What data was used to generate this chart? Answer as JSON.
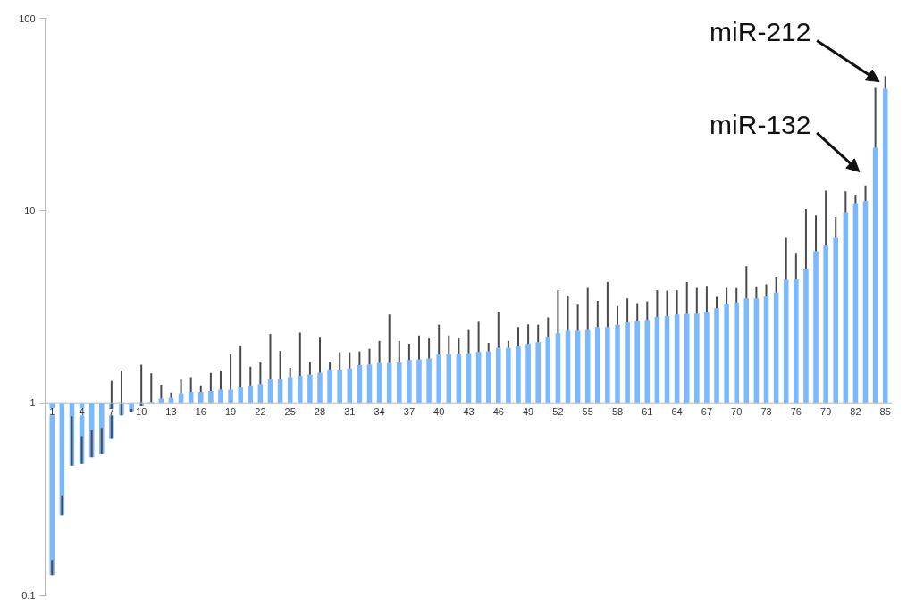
{
  "chart_data": {
    "type": "bar",
    "log": "y",
    "grid": false,
    "categories": [
      "1",
      null,
      null,
      "4",
      null,
      null,
      "7",
      null,
      null,
      "10",
      null,
      null,
      "13",
      null,
      null,
      "16",
      null,
      null,
      "19",
      null,
      null,
      "22",
      null,
      null,
      "25",
      null,
      null,
      "28",
      null,
      null,
      "31",
      null,
      null,
      "34",
      null,
      null,
      "37",
      null,
      null,
      "40",
      null,
      null,
      "43",
      null,
      null,
      "46",
      null,
      null,
      "49",
      null,
      null,
      "52",
      null,
      null,
      "55",
      null,
      null,
      "58",
      null,
      null,
      "61",
      null,
      null,
      "64",
      null,
      null,
      "67",
      null,
      null,
      "70",
      null,
      null,
      "73",
      null,
      null,
      "76",
      null,
      null,
      "79",
      null,
      null,
      "82",
      null,
      null,
      "85"
    ],
    "series": [
      {
        "color": "#7ab8ff",
        "base": [
          1,
          1,
          1,
          1,
          1,
          1,
          1,
          1,
          1,
          1,
          1,
          1,
          1,
          1,
          1,
          1,
          1,
          1,
          1,
          1,
          1,
          1,
          1,
          1,
          1,
          1,
          1,
          1,
          1,
          1,
          1,
          1,
          1,
          1,
          1,
          1,
          1,
          1,
          1,
          1,
          1,
          1,
          1,
          1,
          1,
          1,
          1,
          1,
          1,
          1,
          1,
          1,
          1,
          1,
          1,
          1,
          1,
          1,
          1,
          1,
          1,
          1,
          1,
          1,
          1,
          1,
          1,
          1,
          1,
          1,
          1,
          1,
          1,
          1,
          1,
          1,
          1,
          1,
          1,
          1,
          1,
          1,
          1,
          1,
          1
        ],
        "values": [
          -0.873,
          -0.74,
          -0.53,
          -0.52,
          -0.48,
          -0.46,
          -0.35,
          -0.14,
          -0.1,
          -0.04,
          0.01,
          0.05,
          0.06,
          0.12,
          0.14,
          0.14,
          0.15,
          0.17,
          0.17,
          0.2,
          0.23,
          0.25,
          0.32,
          0.33,
          0.36,
          0.38,
          0.4,
          0.43,
          0.49,
          0.49,
          0.51,
          0.57,
          0.58,
          0.61,
          0.61,
          0.62,
          0.67,
          0.68,
          0.7,
          0.78,
          0.79,
          0.8,
          0.81,
          0.84,
          0.85,
          0.93,
          0.93,
          0.96,
          1.03,
          1.07,
          1.19,
          1.3,
          1.37,
          1.37,
          1.39,
          1.48,
          1.48,
          1.55,
          1.62,
          1.67,
          1.7,
          1.8,
          1.83,
          1.88,
          1.9,
          1.91,
          1.96,
          2.1,
          2.27,
          2.33,
          2.49,
          2.49,
          2.58,
          2.74,
          3.36,
          3.39,
          3.98,
          5.13,
          5.64,
          6.21,
          8.71,
          9.9,
          10.2,
          20.2,
          42
        ],
        "errors": [
          [
            0.127,
            0.152
          ],
          [
            0.26,
            0.33
          ],
          [
            0.47,
            0.85
          ],
          [
            0.48,
            0.67
          ],
          [
            0.52,
            0.72
          ],
          [
            0.54,
            0.74
          ],
          [
            0.65,
            1.3
          ],
          [
            0.86,
            1.47
          ],
          [
            0.9,
            0.93
          ],
          [
            0.96,
            1.58
          ],
          [
            1.01,
            1.42
          ],
          [
            1.05,
            1.24
          ],
          [
            1.06,
            1.13
          ],
          [
            1.12,
            1.32
          ],
          [
            1.14,
            1.36
          ],
          [
            1.14,
            1.23
          ],
          [
            1.15,
            1.43
          ],
          [
            1.17,
            1.47
          ],
          [
            1.17,
            1.79
          ],
          [
            1.2,
            1.98
          ],
          [
            1.23,
            1.54
          ],
          [
            1.25,
            1.64
          ],
          [
            1.32,
            2.28
          ],
          [
            1.33,
            1.86
          ],
          [
            1.36,
            1.52
          ],
          [
            1.38,
            2.32
          ],
          [
            1.4,
            1.64
          ],
          [
            1.43,
            2.18
          ],
          [
            1.49,
            1.64
          ],
          [
            1.49,
            1.83
          ],
          [
            1.51,
            1.83
          ],
          [
            1.57,
            1.85
          ],
          [
            1.58,
            1.91
          ],
          [
            1.61,
            2.1
          ],
          [
            1.61,
            2.88
          ],
          [
            1.62,
            2.1
          ],
          [
            1.67,
            2.03
          ],
          [
            1.68,
            2.24
          ],
          [
            1.7,
            2.16
          ],
          [
            1.78,
            2.55
          ],
          [
            1.79,
            2.24
          ],
          [
            1.8,
            2.16
          ],
          [
            1.81,
            2.39
          ],
          [
            1.84,
            2.64
          ],
          [
            1.85,
            2.05
          ],
          [
            1.93,
            2.97
          ],
          [
            1.93,
            2.1
          ],
          [
            1.96,
            2.48
          ],
          [
            2.03,
            2.56
          ],
          [
            2.07,
            2.55
          ],
          [
            2.19,
            2.78
          ],
          [
            2.3,
            3.85
          ],
          [
            2.37,
            3.62
          ],
          [
            2.37,
            3.24
          ],
          [
            2.39,
            3.96
          ],
          [
            2.48,
            3.39
          ],
          [
            2.48,
            4.25
          ],
          [
            2.55,
            3.19
          ],
          [
            2.62,
            3.49
          ],
          [
            2.67,
            3.3
          ],
          [
            2.7,
            3.37
          ],
          [
            2.8,
            3.85
          ],
          [
            2.83,
            3.83
          ],
          [
            2.88,
            3.85
          ],
          [
            2.9,
            4.24
          ],
          [
            2.91,
            3.96
          ],
          [
            2.96,
            4.06
          ],
          [
            3.1,
            3.56
          ],
          [
            3.27,
            3.96
          ],
          [
            3.33,
            3.95
          ],
          [
            3.49,
            5.13
          ],
          [
            3.49,
            4.03
          ],
          [
            3.58,
            4.13
          ],
          [
            3.74,
            4.52
          ],
          [
            4.36,
            7.21
          ],
          [
            4.39,
            6.03
          ],
          [
            4.98,
            10.2
          ],
          [
            6.13,
            9.43
          ],
          [
            6.64,
            12.7
          ],
          [
            7.21,
            9.27
          ],
          [
            9.71,
            12.6
          ],
          [
            10.9,
            12.1
          ],
          [
            11.2,
            13.5
          ],
          [
            21.2,
            43.4
          ],
          [
            43,
            50
          ]
        ]
      }
    ],
    "ylim": [
      0.1,
      100
    ],
    "yticks": [
      0.1,
      1,
      10,
      100
    ],
    "annotations": [
      "miR-212",
      "miR-132"
    ]
  }
}
